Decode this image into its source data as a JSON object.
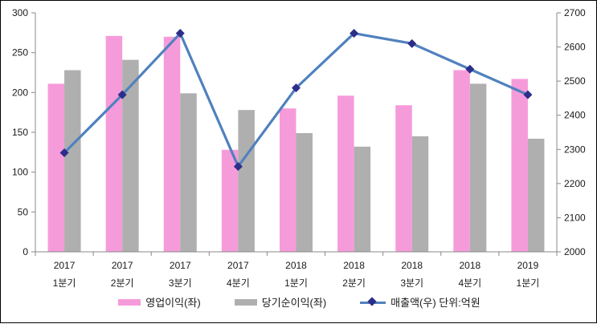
{
  "chart_data": {
    "type": "bar",
    "subtype": "grouped-bars-with-line",
    "title": "",
    "categories": [
      {
        "year": "2017",
        "quarter": "1분기"
      },
      {
        "year": "2017",
        "quarter": "2분기"
      },
      {
        "year": "2017",
        "quarter": "3분기"
      },
      {
        "year": "2017",
        "quarter": "4분기"
      },
      {
        "year": "2018",
        "quarter": "1분기"
      },
      {
        "year": "2018",
        "quarter": "2분기"
      },
      {
        "year": "2018",
        "quarter": "3분기"
      },
      {
        "year": "2018",
        "quarter": "4분기"
      },
      {
        "year": "2019",
        "quarter": "1분기"
      }
    ],
    "series": [
      {
        "name": "영업이익(좌)",
        "kind": "bar",
        "axis": "left",
        "color": "#F69BDA",
        "values": [
          211,
          271,
          270,
          128,
          180,
          196,
          184,
          228,
          217
        ]
      },
      {
        "name": "당기순이익(좌)",
        "kind": "bar",
        "axis": "left",
        "color": "#AFAFAF",
        "values": [
          228,
          241,
          199,
          178,
          149,
          132,
          145,
          211,
          142
        ]
      },
      {
        "name": "매출액(우) 단위:억원",
        "kind": "line",
        "axis": "right",
        "color": "#5081BE",
        "marker_color": "#2D2D8A",
        "values": [
          2290,
          2460,
          2640,
          2250,
          2480,
          2640,
          2610,
          2535,
          2460
        ]
      }
    ],
    "left_axis": {
      "min": 0,
      "max": 300,
      "step": 50,
      "ticks": [
        "0",
        "50",
        "100",
        "150",
        "200",
        "250",
        "300"
      ]
    },
    "right_axis": {
      "min": 2000,
      "max": 2700,
      "step": 100,
      "ticks": [
        "2000",
        "2100",
        "2200",
        "2300",
        "2400",
        "2500",
        "2600",
        "2700"
      ]
    },
    "grid": false,
    "legend_position": "bottom"
  },
  "colors": {
    "axis_line": "#888888",
    "text": "#1a1a1a",
    "background": "#ffffff",
    "border": "#000000"
  }
}
